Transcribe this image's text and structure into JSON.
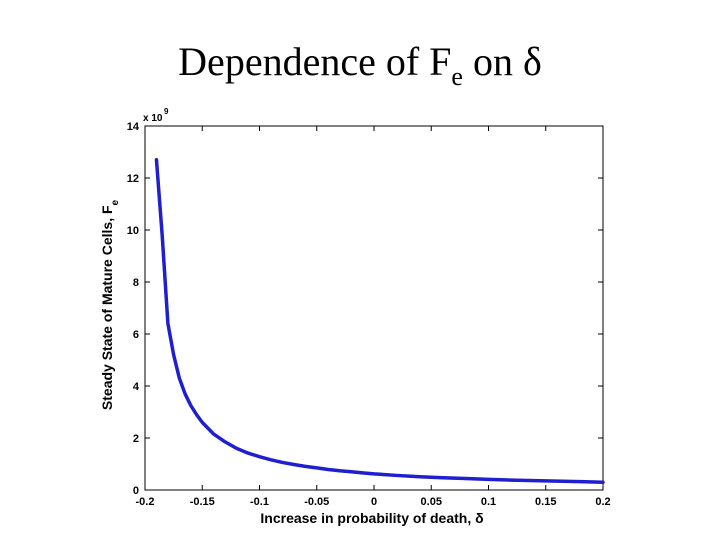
{
  "title": {
    "prefix": "Dependence of F",
    "subscript": "e",
    "suffix": " on δ"
  },
  "chart_data": {
    "type": "line",
    "title": "Dependence of Fe on δ",
    "xlabel": "Increase in probability of death, δ",
    "ylabel": "Steady State of Mature Cells, F",
    "ylabel_subscript": "e",
    "y_multiplier_base": "x 10",
    "y_multiplier_exponent": "9",
    "xlim": [
      -0.2,
      0.2
    ],
    "ylim": [
      0,
      14
    ],
    "xticks": [
      -0.2,
      -0.15,
      -0.1,
      -0.05,
      0,
      0.05,
      0.1,
      0.15,
      0.2
    ],
    "xtick_labels": [
      "-0.2",
      "-0.15",
      "-0.1",
      "-0.05",
      "0",
      "0.05",
      "0.1",
      "0.15",
      "0.2"
    ],
    "yticks": [
      0,
      2,
      4,
      6,
      8,
      10,
      12,
      14
    ],
    "ytick_labels": [
      "0",
      "2",
      "4",
      "6",
      "8",
      "10",
      "12",
      "14"
    ],
    "grid": false,
    "line_color": "#1f1fd0",
    "series": [
      {
        "x": [
          -0.19,
          -0.185,
          -0.18,
          -0.175,
          -0.17,
          -0.165,
          -0.16,
          -0.155,
          -0.15,
          -0.14,
          -0.13,
          -0.12,
          -0.11,
          -0.1,
          -0.09,
          -0.08,
          -0.07,
          -0.06,
          -0.05,
          -0.04,
          -0.03,
          -0.02,
          -0.01,
          0,
          0.02,
          0.04,
          0.06,
          0.08,
          0.1,
          0.12,
          0.14,
          0.16,
          0.18,
          0.2
        ],
        "y": [
          12.7,
          9.8,
          6.4,
          5.2,
          4.3,
          3.7,
          3.25,
          2.9,
          2.6,
          2.15,
          1.85,
          1.6,
          1.42,
          1.28,
          1.16,
          1.06,
          0.98,
          0.91,
          0.85,
          0.79,
          0.74,
          0.7,
          0.66,
          0.62,
          0.56,
          0.51,
          0.47,
          0.44,
          0.41,
          0.38,
          0.36,
          0.34,
          0.32,
          0.3
        ]
      }
    ]
  }
}
